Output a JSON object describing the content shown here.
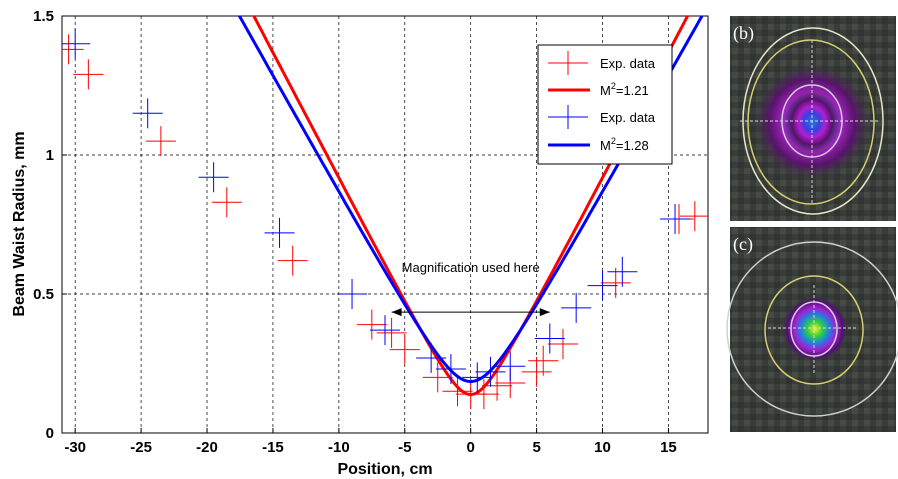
{
  "chart_data": {
    "type": "line",
    "xlabel": "Position, cm",
    "ylabel": "Beam Waist Radius, mm",
    "xlim": [
      -31,
      18
    ],
    "ylim": [
      0,
      1.5
    ],
    "xticks": [
      "-30",
      "-25",
      "-20",
      "-15",
      "-10",
      "-5",
      "0",
      "5",
      "10",
      "15"
    ],
    "yticks": [
      "0",
      "0.5",
      "1",
      "1.5"
    ],
    "grid": true,
    "legend": {
      "position": "top-right",
      "entries": [
        {
          "label": "Exp. data",
          "marker": "plus",
          "color": "#ff0000"
        },
        {
          "label": "M2=1.21",
          "line": true,
          "color": "#ff0000"
        },
        {
          "label": "Exp. data",
          "marker": "plus",
          "color": "#0000ff"
        },
        {
          "label": "M2=1.28",
          "line": true,
          "color": "#0000ff"
        }
      ]
    },
    "series": [
      {
        "name": "Exp. data",
        "kind": "markers",
        "color": "#ff0000",
        "points": [
          [
            -30.5,
            1.38
          ],
          [
            -29,
            1.29
          ],
          [
            -23.5,
            1.05
          ],
          [
            -18.5,
            0.83
          ],
          [
            -13.5,
            0.62
          ],
          [
            -7.5,
            0.39
          ],
          [
            -6,
            0.36
          ],
          [
            -5,
            0.3
          ],
          [
            -2.5,
            0.2
          ],
          [
            -1,
            0.15
          ],
          [
            0,
            0.14
          ],
          [
            1,
            0.14
          ],
          [
            2,
            0.17
          ],
          [
            3,
            0.18
          ],
          [
            5,
            0.22
          ],
          [
            5.5,
            0.26
          ],
          [
            7,
            0.32
          ],
          [
            11,
            0.54
          ],
          [
            15.8,
            0.77
          ],
          [
            17,
            0.78
          ]
        ]
      },
      {
        "name": "M2=1.21",
        "kind": "line",
        "color": "#ff0000",
        "w0": 0.138,
        "zR": 1.52,
        "z0": 0
      },
      {
        "name": "Exp. data",
        "kind": "markers",
        "color": "#0000ff",
        "points": [
          [
            -30,
            1.4
          ],
          [
            -24.5,
            1.15
          ],
          [
            -19.5,
            0.92
          ],
          [
            -14.5,
            0.72
          ],
          [
            -9,
            0.5
          ],
          [
            -6.5,
            0.37
          ],
          [
            -3,
            0.27
          ],
          [
            -1.5,
            0.23
          ],
          [
            0.5,
            0.2
          ],
          [
            1.5,
            0.22
          ],
          [
            3,
            0.24
          ],
          [
            6,
            0.34
          ],
          [
            8,
            0.45
          ],
          [
            10,
            0.53
          ],
          [
            11.5,
            0.58
          ],
          [
            15.5,
            0.77
          ]
        ]
      },
      {
        "name": "M2=1.28",
        "kind": "line",
        "color": "#0000ff",
        "w0": 0.185,
        "zR": 2.18,
        "z0": 0
      }
    ],
    "annotations": [
      {
        "text": "Magnification used here",
        "arrow_from": -6,
        "arrow_to": 6,
        "y": 0.435
      }
    ]
  },
  "panels": {
    "b": {
      "label": "(b)"
    },
    "c": {
      "label": "(c)"
    }
  }
}
